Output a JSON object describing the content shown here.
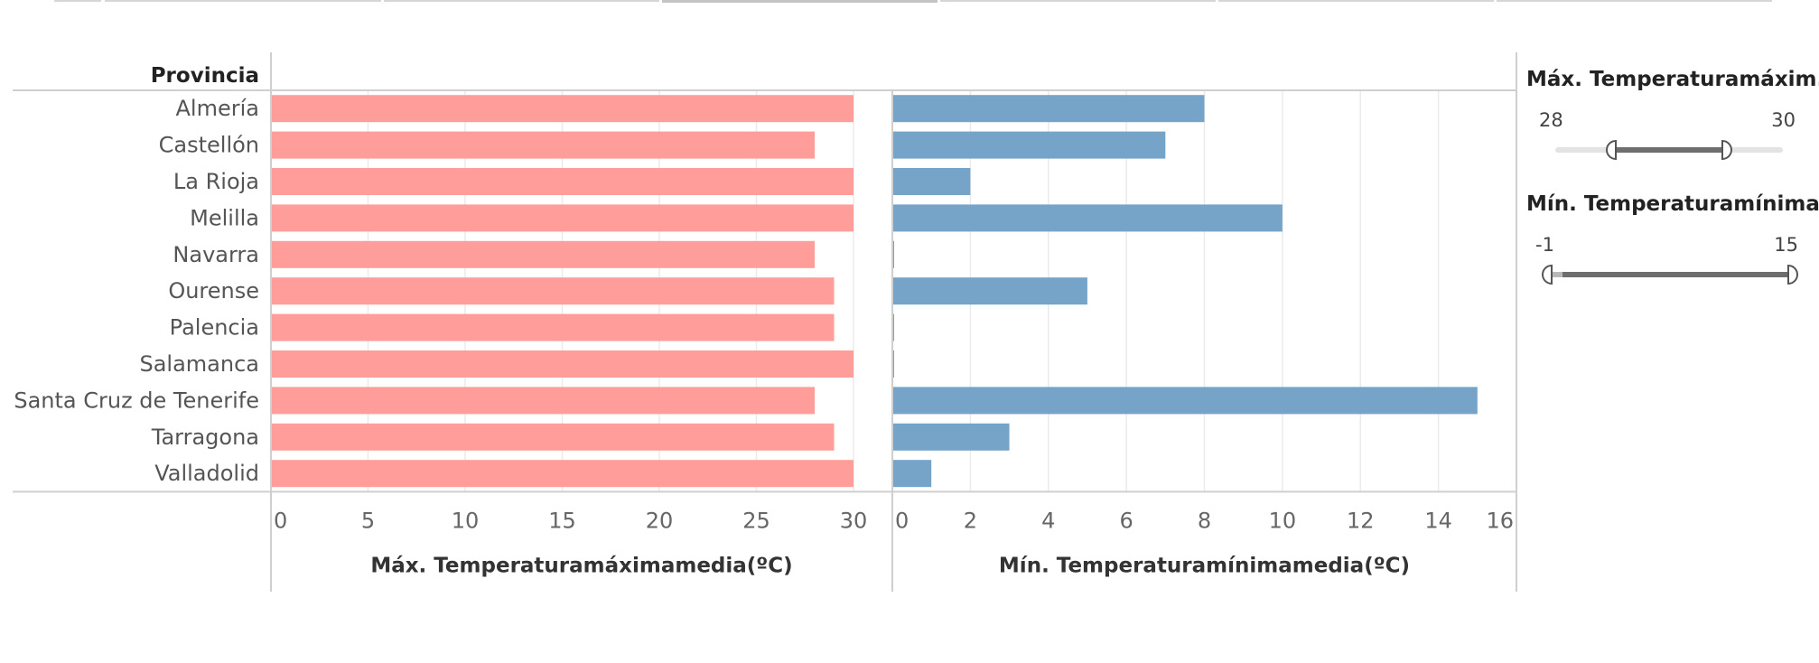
{
  "row_header": "Provincia",
  "colors": {
    "max_bar": "#ff9d9a",
    "min_bar": "#76a4c9",
    "gridline": "#ebebeb",
    "axis_line": "#cfcfcf"
  },
  "chart_data": [
    {
      "type": "bar",
      "orientation": "horizontal",
      "categories": [
        "Almería",
        "Castellón",
        "La Rioja",
        "Melilla",
        "Navarra",
        "Ourense",
        "Palencia",
        "Salamanca",
        "Santa Cruz de Tenerife",
        "Tarragona",
        "Valladolid"
      ],
      "values": [
        30,
        28,
        30,
        30,
        28,
        29,
        29,
        30,
        28,
        29,
        30
      ],
      "xlabel": "Máx. Temperaturamáximamedia(ºC)",
      "xlim": [
        0,
        32
      ],
      "ticks": [
        "0",
        "5",
        "10",
        "15",
        "20",
        "25",
        "30"
      ],
      "color": "#ff9d9a",
      "grid": true
    },
    {
      "type": "bar",
      "orientation": "horizontal",
      "categories": [
        "Almería",
        "Castellón",
        "La Rioja",
        "Melilla",
        "Navarra",
        "Ourense",
        "Palencia",
        "Salamanca",
        "Santa Cruz de Tenerife",
        "Tarragona",
        "Valladolid"
      ],
      "values": [
        8,
        7,
        2,
        10,
        0,
        5,
        0,
        0,
        15,
        3,
        1
      ],
      "xlabel": "Mín. Temperaturamínimamedia(ºC)",
      "xlim": [
        0,
        16
      ],
      "ticks": [
        "0",
        "2",
        "4",
        "6",
        "8",
        "10",
        "12",
        "14",
        "16"
      ],
      "color": "#76a4c9",
      "grid": true
    }
  ],
  "filters": [
    {
      "title": "Máx. Temperaturamáxim..",
      "min_label": "28",
      "max_label": "30",
      "domain": [
        27,
        31
      ],
      "range": [
        28,
        30
      ]
    },
    {
      "title": "Mín. Temperaturamínima..",
      "min_label": "-1",
      "max_label": "15",
      "domain": [
        -1,
        15
      ],
      "range": [
        -1,
        15
      ]
    }
  ]
}
